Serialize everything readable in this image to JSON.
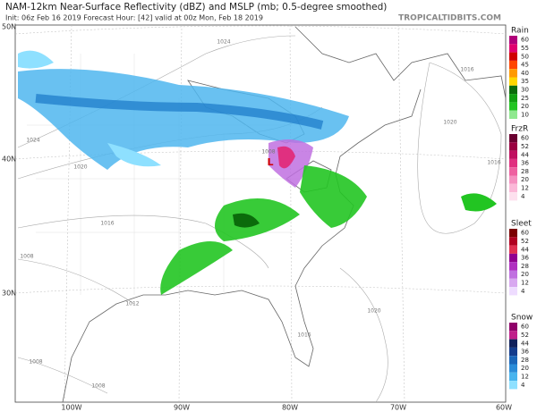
{
  "header": {
    "title": "NAM-12km Near-Surface Reflectivity (dBZ) and MSLP (mb; 0.5-degree smoothed)",
    "subtitle": "Init: 06z Feb 16 2019   Forecast Hour: [42]   valid at 00z Mon, Feb 18 2019",
    "watermark": "TROPICALTIDBITS.COM"
  },
  "axes": {
    "lat_labels": [
      "50N",
      "40N",
      "30N"
    ],
    "lon_labels": [
      "100W",
      "90W",
      "80W",
      "70W",
      "60W"
    ]
  },
  "isobar_labels": [
    "1024",
    "1016",
    "1020",
    "1024",
    "1020",
    "1016",
    "1016",
    "1008",
    "1012",
    "1020",
    "1016",
    "1008",
    "1008",
    "1008"
  ],
  "low_label": "L",
  "legends": [
    {
      "title": "Rain",
      "labels": [
        "60",
        "55",
        "50",
        "45",
        "40",
        "35",
        "30",
        "25",
        "20",
        "10"
      ],
      "colors": [
        "#b0007a",
        "#e0006f",
        "#d00000",
        "#ff4500",
        "#ff9a00",
        "#ffd700",
        "#0b6b0b",
        "#119f11",
        "#22c522",
        "#8fe88f"
      ]
    },
    {
      "title": "FrzR",
      "labels": [
        "60",
        "52",
        "44",
        "36",
        "28",
        "20",
        "12",
        "4"
      ],
      "colors": [
        "#6a0030",
        "#9a0040",
        "#c01060",
        "#e03080",
        "#ee60a0",
        "#f590c0",
        "#fbb8d8",
        "#fde0ee"
      ]
    },
    {
      "title": "Sleet",
      "labels": [
        "60",
        "52",
        "44",
        "36",
        "28",
        "20",
        "12",
        "4"
      ],
      "colors": [
        "#7a0000",
        "#b00020",
        "#e03050",
        "#900090",
        "#b030c0",
        "#c070e0",
        "#d8a8f0",
        "#eedcff"
      ]
    },
    {
      "title": "Snow",
      "labels": [
        "60",
        "52",
        "44",
        "36",
        "28",
        "20",
        "12",
        "4"
      ],
      "colors": [
        "#90006a",
        "#c0208a",
        "#10205a",
        "#143c8c",
        "#1a66b8",
        "#2a8cd8",
        "#48b4ee",
        "#8ee0ff"
      ]
    }
  ]
}
